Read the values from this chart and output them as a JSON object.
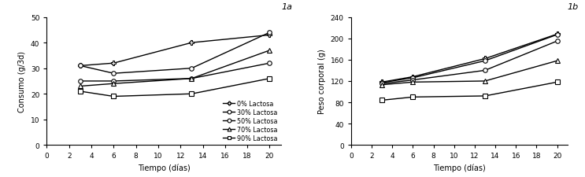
{
  "time": [
    3,
    6,
    13,
    20
  ],
  "consumo": {
    "0%": [
      31,
      32,
      40,
      43
    ],
    "30%": [
      31,
      28,
      30,
      44
    ],
    "50%": [
      25,
      25,
      26,
      32
    ],
    "70%": [
      23,
      24,
      26,
      37
    ],
    "90%": [
      21,
      19,
      20,
      26
    ]
  },
  "peso": {
    "0%": [
      118,
      128,
      162,
      208
    ],
    "30%": [
      117,
      126,
      158,
      207
    ],
    "50%": [
      115,
      122,
      140,
      195
    ],
    "70%": [
      113,
      118,
      120,
      158
    ],
    "90%": [
      84,
      90,
      92,
      118
    ]
  },
  "legend_labels": [
    "0% Lactosa",
    "30% Lactosa",
    "50% Lactosa",
    "70% Lactosa",
    "90% Lactosa"
  ],
  "markers": [
    "P",
    "o",
    "o",
    "^",
    "s"
  ],
  "xlabel": "Tiempo (días)",
  "ylabel_a": "Consumo (g/3d)",
  "ylabel_b": "Peso corporal (g)",
  "label_a": "1a",
  "label_b": "1b",
  "xlim": [
    0,
    21
  ],
  "xticks": [
    0,
    2,
    4,
    6,
    8,
    10,
    12,
    14,
    16,
    18,
    20
  ],
  "ylim_a": [
    0,
    50
  ],
  "yticks_a": [
    0,
    10,
    20,
    30,
    40,
    50
  ],
  "ylim_b": [
    0,
    240
  ],
  "yticks_b": [
    0,
    40,
    80,
    120,
    160,
    200,
    240
  ],
  "color": "black",
  "linewidth": 1.0,
  "markersize": 4,
  "figsize": [
    7.43,
    2.26
  ],
  "dpi": 100
}
